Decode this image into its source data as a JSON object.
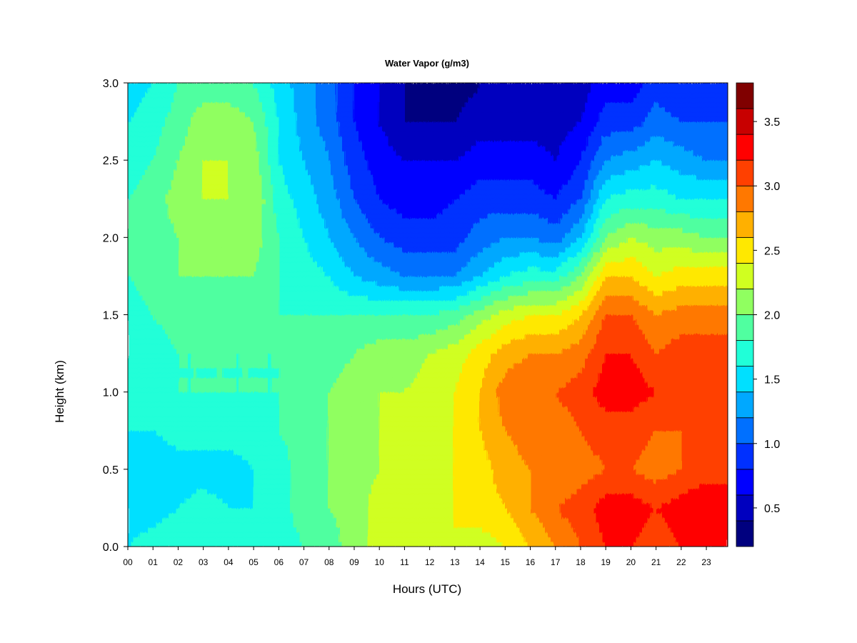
{
  "chart_data": {
    "type": "heatmap",
    "title": "Water Vapor (g/m3)",
    "xlabel": "Hours (UTC)",
    "ylabel": "Height (km)",
    "xlim": [
      0,
      23.85
    ],
    "ylim": [
      0,
      3.0
    ],
    "x_ticks": [
      "00",
      "01",
      "02",
      "03",
      "04",
      "05",
      "06",
      "07",
      "08",
      "09",
      "10",
      "11",
      "12",
      "13",
      "14",
      "15",
      "16",
      "17",
      "18",
      "19",
      "20",
      "21",
      "22",
      "23"
    ],
    "y_ticks": [
      "0.0",
      "0.5",
      "1.0",
      "1.5",
      "2.0",
      "2.5",
      "3.0"
    ],
    "colorbar": {
      "range": [
        0.2,
        3.8
      ],
      "step": 0.2,
      "tick_labels": [
        "0.5",
        "1.0",
        "1.5",
        "2.0",
        "2.5",
        "3.0",
        "3.5"
      ],
      "colors": [
        "#00007F",
        "#0000BF",
        "#0000FF",
        "#0030FF",
        "#0070FF",
        "#00A8FF",
        "#00E0FF",
        "#20FFD8",
        "#50FFA0",
        "#90FF60",
        "#D0FF20",
        "#FFE800",
        "#FFB000",
        "#FF7800",
        "#FF4000",
        "#FF0000",
        "#C80000",
        "#800000"
      ]
    },
    "height_levels_km": [
      0.0,
      0.25,
      0.5,
      0.75,
      1.0,
      1.25,
      1.5,
      1.75,
      2.0,
      2.25,
      2.5,
      2.75,
      3.0
    ],
    "time_hours": [
      0,
      1,
      2,
      3,
      4,
      5,
      6,
      7,
      8,
      9,
      10,
      11,
      12,
      13,
      14,
      15,
      16,
      17,
      18,
      19,
      20,
      21,
      22,
      23
    ],
    "values": [
      [
        1.6,
        1.7,
        1.8,
        1.8,
        1.8,
        1.7,
        1.7,
        1.8,
        1.9,
        2.1,
        2.3,
        2.4,
        2.4,
        2.4,
        2.3,
        2.4,
        2.6,
        2.8,
        3.0,
        3.2,
        3.2,
        3.1,
        3.2,
        3.3
      ],
      [
        1.5,
        1.5,
        1.6,
        1.7,
        1.6,
        1.6,
        1.7,
        1.9,
        2.0,
        2.1,
        2.3,
        2.4,
        2.4,
        2.4,
        2.5,
        2.6,
        2.8,
        3.0,
        3.1,
        3.3,
        3.3,
        3.2,
        3.3,
        3.4
      ],
      [
        1.4,
        1.4,
        1.5,
        1.5,
        1.5,
        1.6,
        1.7,
        1.9,
        2.0,
        2.1,
        2.2,
        2.3,
        2.3,
        2.4,
        2.5,
        2.7,
        2.8,
        2.8,
        2.9,
        3.0,
        3.0,
        2.9,
        3.0,
        3.1
      ],
      [
        1.6,
        1.6,
        1.7,
        1.7,
        1.7,
        1.7,
        1.8,
        1.9,
        2.0,
        2.1,
        2.2,
        2.2,
        2.3,
        2.4,
        2.6,
        2.8,
        2.9,
        2.9,
        3.0,
        3.1,
        3.1,
        3.0,
        3.0,
        3.1
      ],
      [
        1.7,
        1.7,
        1.8,
        1.8,
        1.8,
        1.8,
        1.8,
        1.9,
        2.0,
        2.1,
        2.2,
        2.2,
        2.3,
        2.4,
        2.6,
        2.9,
        3.0,
        3.0,
        3.1,
        3.3,
        3.3,
        3.2,
        3.2,
        3.2
      ],
      [
        1.7,
        1.7,
        1.8,
        1.8,
        1.8,
        1.8,
        1.8,
        1.9,
        1.9,
        2.0,
        2.1,
        2.1,
        2.2,
        2.3,
        2.5,
        2.7,
        2.8,
        2.8,
        2.9,
        3.2,
        3.2,
        3.0,
        3.1,
        3.1
      ],
      [
        1.7,
        1.8,
        1.9,
        1.9,
        1.9,
        1.9,
        1.8,
        1.8,
        1.8,
        1.8,
        1.8,
        1.8,
        1.8,
        1.9,
        2.1,
        2.3,
        2.4,
        2.4,
        2.6,
        3.0,
        3.0,
        2.8,
        2.9,
        2.9
      ],
      [
        1.8,
        1.9,
        2.0,
        2.0,
        2.0,
        2.0,
        1.8,
        1.7,
        1.6,
        1.4,
        1.3,
        1.2,
        1.2,
        1.2,
        1.4,
        1.6,
        1.7,
        1.7,
        2.0,
        2.6,
        2.6,
        2.4,
        2.5,
        2.5
      ],
      [
        1.8,
        1.9,
        2.0,
        2.1,
        2.1,
        2.1,
        1.8,
        1.6,
        1.4,
        1.2,
        1.0,
        0.9,
        0.9,
        0.9,
        1.1,
        1.2,
        1.2,
        1.1,
        1.4,
        2.0,
        2.2,
        2.1,
        2.1,
        2.0
      ],
      [
        1.8,
        1.9,
        2.1,
        2.2,
        2.2,
        2.2,
        1.7,
        1.5,
        1.3,
        1.0,
        0.8,
        0.7,
        0.7,
        0.8,
        0.9,
        0.9,
        0.9,
        0.8,
        1.0,
        1.6,
        1.7,
        1.7,
        1.6,
        1.6
      ],
      [
        1.7,
        1.8,
        2.0,
        2.2,
        2.2,
        2.1,
        1.6,
        1.4,
        1.2,
        0.9,
        0.7,
        0.6,
        0.6,
        0.6,
        0.7,
        0.7,
        0.7,
        0.6,
        0.8,
        1.2,
        1.3,
        1.4,
        1.3,
        1.2
      ],
      [
        1.6,
        1.7,
        1.9,
        2.1,
        2.1,
        2.0,
        1.6,
        1.3,
        1.1,
        0.8,
        0.6,
        0.4,
        0.4,
        0.4,
        0.5,
        0.5,
        0.5,
        0.5,
        0.6,
        0.9,
        0.9,
        1.1,
        1.0,
        1.0
      ],
      [
        1.5,
        1.6,
        1.8,
        1.9,
        1.9,
        1.8,
        1.5,
        1.3,
        1.1,
        0.8,
        0.6,
        0.4,
        0.3,
        0.3,
        0.4,
        0.4,
        0.4,
        0.4,
        0.5,
        0.7,
        0.7,
        0.9,
        0.8,
        0.9
      ]
    ]
  }
}
